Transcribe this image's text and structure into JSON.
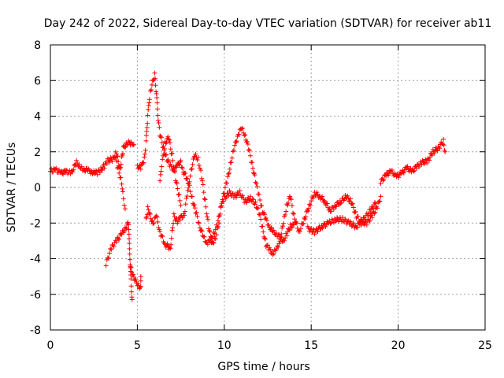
{
  "chart_data": {
    "type": "scatter",
    "title": "Day 242 of 2022, Sidereal Day-to-day VTEC variation (SDTVAR) for receiver ab11",
    "xlabel": "GPS time / hours",
    "ylabel": "SDTVAR / TECUs",
    "xlim": [
      0,
      25
    ],
    "ylim": [
      -8,
      8
    ],
    "x_ticks": [
      0,
      5,
      10,
      15,
      20,
      25
    ],
    "y_ticks": [
      -8,
      -6,
      -4,
      -2,
      0,
      2,
      4,
      6,
      8
    ],
    "grid": true,
    "legend": "none",
    "marker": "+",
    "series_color": "#ff0000",
    "series": [
      {
        "name": "track-1",
        "points": [
          [
            0.0,
            0.9
          ],
          [
            0.3,
            1.0
          ],
          [
            0.6,
            0.8
          ],
          [
            0.9,
            0.9
          ],
          [
            1.2,
            0.8
          ],
          [
            1.5,
            1.4
          ],
          [
            1.7,
            1.2
          ],
          [
            1.9,
            0.9
          ],
          [
            2.1,
            1.1
          ],
          [
            2.3,
            0.8
          ],
          [
            2.5,
            0.9
          ],
          [
            2.7,
            0.8
          ],
          [
            2.9,
            1.0
          ],
          [
            3.1,
            1.2
          ],
          [
            3.3,
            1.5
          ],
          [
            3.6,
            1.6
          ],
          [
            3.8,
            2.0
          ],
          [
            3.9,
            1.5
          ],
          [
            4.0,
            1.0
          ],
          [
            4.1,
            1.6
          ],
          [
            4.2,
            2.2
          ],
          [
            4.4,
            2.5
          ],
          [
            4.7,
            2.5
          ],
          [
            4.8,
            2.4
          ]
        ]
      },
      {
        "name": "track-2",
        "points": [
          [
            3.2,
            -4.3
          ],
          [
            3.5,
            -3.4
          ],
          [
            3.8,
            -3.0
          ],
          [
            4.1,
            -2.6
          ],
          [
            4.3,
            -2.3
          ],
          [
            4.5,
            -2.0
          ],
          [
            4.55,
            -3.5
          ],
          [
            4.6,
            -4.5
          ],
          [
            4.65,
            -5.5
          ],
          [
            4.7,
            -6.3
          ]
        ]
      },
      {
        "name": "track-3",
        "points": [
          [
            3.7,
            1.8
          ],
          [
            3.9,
            1.0
          ],
          [
            4.1,
            0.3
          ],
          [
            4.2,
            -0.6
          ],
          [
            4.3,
            -1.2
          ]
        ]
      },
      {
        "name": "track-4",
        "points": [
          [
            4.6,
            -4.5
          ],
          [
            4.8,
            -5.0
          ],
          [
            5.0,
            -5.5
          ],
          [
            5.2,
            -5.6
          ],
          [
            5.2,
            -5.0
          ]
        ]
      },
      {
        "name": "track-5",
        "points": [
          [
            5.0,
            1.2
          ],
          [
            5.2,
            1.1
          ],
          [
            5.4,
            1.6
          ],
          [
            5.5,
            2.5
          ],
          [
            5.6,
            4.0
          ],
          [
            5.7,
            5.0
          ],
          [
            5.8,
            5.6
          ],
          [
            6.0,
            6.3
          ],
          [
            6.1,
            5.2
          ],
          [
            6.2,
            3.8
          ],
          [
            6.3,
            3.0
          ],
          [
            6.5,
            2.2
          ],
          [
            6.7,
            1.6
          ],
          [
            6.9,
            1.2
          ],
          [
            7.1,
            1.0
          ],
          [
            7.3,
            1.2
          ],
          [
            7.5,
            1.5
          ],
          [
            7.6,
            1.0
          ],
          [
            7.8,
            0.6
          ],
          [
            8.0,
            0.0
          ],
          [
            8.2,
            -0.8
          ],
          [
            8.4,
            -1.5
          ],
          [
            8.6,
            -2.2
          ],
          [
            8.8,
            -2.8
          ],
          [
            9.0,
            -3.1
          ],
          [
            9.2,
            -3.0
          ],
          [
            9.4,
            -2.6
          ],
          [
            9.6,
            -2.1
          ],
          [
            9.8,
            -1.2
          ],
          [
            10.0,
            -0.2
          ],
          [
            10.2,
            0.5
          ],
          [
            10.4,
            1.5
          ],
          [
            10.6,
            2.3
          ],
          [
            10.8,
            3.0
          ],
          [
            11.0,
            3.3
          ],
          [
            11.2,
            2.9
          ],
          [
            11.4,
            2.2
          ],
          [
            11.6,
            1.3
          ],
          [
            11.8,
            0.4
          ],
          [
            12.0,
            -0.5
          ],
          [
            12.2,
            -1.3
          ],
          [
            12.4,
            -1.8
          ],
          [
            12.6,
            -2.2
          ],
          [
            12.8,
            -2.5
          ],
          [
            13.0,
            -2.6
          ],
          [
            13.2,
            -2.8
          ],
          [
            13.4,
            -3.0
          ],
          [
            13.6,
            -2.6
          ],
          [
            13.8,
            -2.2
          ],
          [
            14.0,
            -2.1
          ]
        ]
      },
      {
        "name": "track-6",
        "points": [
          [
            5.5,
            -1.8
          ],
          [
            5.6,
            -1.2
          ],
          [
            5.7,
            -1.5
          ],
          [
            5.9,
            -2.0
          ],
          [
            6.1,
            -1.6
          ],
          [
            6.3,
            -2.5
          ],
          [
            6.6,
            -3.2
          ],
          [
            6.9,
            -3.4
          ],
          [
            7.0,
            -2.5
          ],
          [
            7.1,
            -1.6
          ],
          [
            7.3,
            -1.9
          ],
          [
            7.5,
            -1.7
          ],
          [
            7.7,
            -1.5
          ],
          [
            7.9,
            -0.2
          ],
          [
            8.1,
            1.0
          ],
          [
            8.3,
            1.8
          ],
          [
            8.5,
            1.6
          ],
          [
            8.7,
            0.6
          ],
          [
            8.9,
            -0.8
          ],
          [
            9.1,
            -2.2
          ],
          [
            9.3,
            -3.2
          ],
          [
            9.5,
            -2.8
          ],
          [
            9.7,
            -2.0
          ]
        ]
      },
      {
        "name": "track-7",
        "points": [
          [
            6.3,
            0.3
          ],
          [
            6.4,
            1.2
          ],
          [
            6.6,
            2.5
          ],
          [
            6.8,
            2.8
          ],
          [
            7.0,
            1.8
          ],
          [
            7.2,
            0.5
          ],
          [
            7.4,
            -0.5
          ],
          [
            7.5,
            -1.0
          ]
        ]
      },
      {
        "name": "track-8",
        "points": [
          [
            9.8,
            -1.0
          ],
          [
            10.0,
            -0.6
          ],
          [
            10.3,
            -0.3
          ],
          [
            10.6,
            -0.5
          ],
          [
            10.9,
            -0.3
          ],
          [
            11.2,
            -0.8
          ],
          [
            11.5,
            -0.6
          ],
          [
            11.8,
            -0.9
          ],
          [
            12.0,
            -1.4
          ],
          [
            12.2,
            -2.3
          ],
          [
            12.4,
            -3.2
          ],
          [
            12.6,
            -3.5
          ],
          [
            12.8,
            -3.7
          ],
          [
            13.0,
            -3.5
          ],
          [
            13.2,
            -3.0
          ],
          [
            13.4,
            -2.0
          ],
          [
            13.6,
            -1.0
          ],
          [
            13.8,
            -0.5
          ],
          [
            14.0,
            -1.6
          ],
          [
            14.3,
            -2.5
          ],
          [
            14.6,
            -1.8
          ],
          [
            14.9,
            -1.0
          ],
          [
            15.2,
            -0.3
          ],
          [
            15.5,
            -0.5
          ],
          [
            15.8,
            -0.8
          ],
          [
            16.1,
            -1.3
          ],
          [
            16.4,
            -1.0
          ],
          [
            16.7,
            -0.8
          ],
          [
            17.0,
            -0.5
          ],
          [
            17.3,
            -0.8
          ],
          [
            17.6,
            -1.6
          ],
          [
            17.9,
            -2.0
          ],
          [
            18.2,
            -2.0
          ],
          [
            18.5,
            -1.6
          ],
          [
            18.8,
            -1.1
          ],
          [
            19.0,
            -0.5
          ]
        ]
      },
      {
        "name": "track-9",
        "points": [
          [
            14.8,
            -2.3
          ],
          [
            15.2,
            -2.5
          ],
          [
            15.6,
            -2.2
          ],
          [
            16.0,
            -2.0
          ],
          [
            16.4,
            -1.8
          ],
          [
            16.8,
            -1.8
          ],
          [
            17.2,
            -2.0
          ],
          [
            17.6,
            -2.2
          ],
          [
            18.0,
            -1.8
          ],
          [
            18.4,
            -1.3
          ],
          [
            18.7,
            -0.9
          ]
        ]
      },
      {
        "name": "track-10",
        "points": [
          [
            19.0,
            0.3
          ],
          [
            19.3,
            0.7
          ],
          [
            19.6,
            0.9
          ],
          [
            19.9,
            0.6
          ],
          [
            20.2,
            0.8
          ],
          [
            20.5,
            1.1
          ],
          [
            20.8,
            0.9
          ],
          [
            21.1,
            1.2
          ],
          [
            21.4,
            1.4
          ],
          [
            21.7,
            1.5
          ],
          [
            22.0,
            2.0
          ],
          [
            22.3,
            2.2
          ],
          [
            22.6,
            2.6
          ],
          [
            22.7,
            2.0
          ]
        ]
      }
    ]
  }
}
